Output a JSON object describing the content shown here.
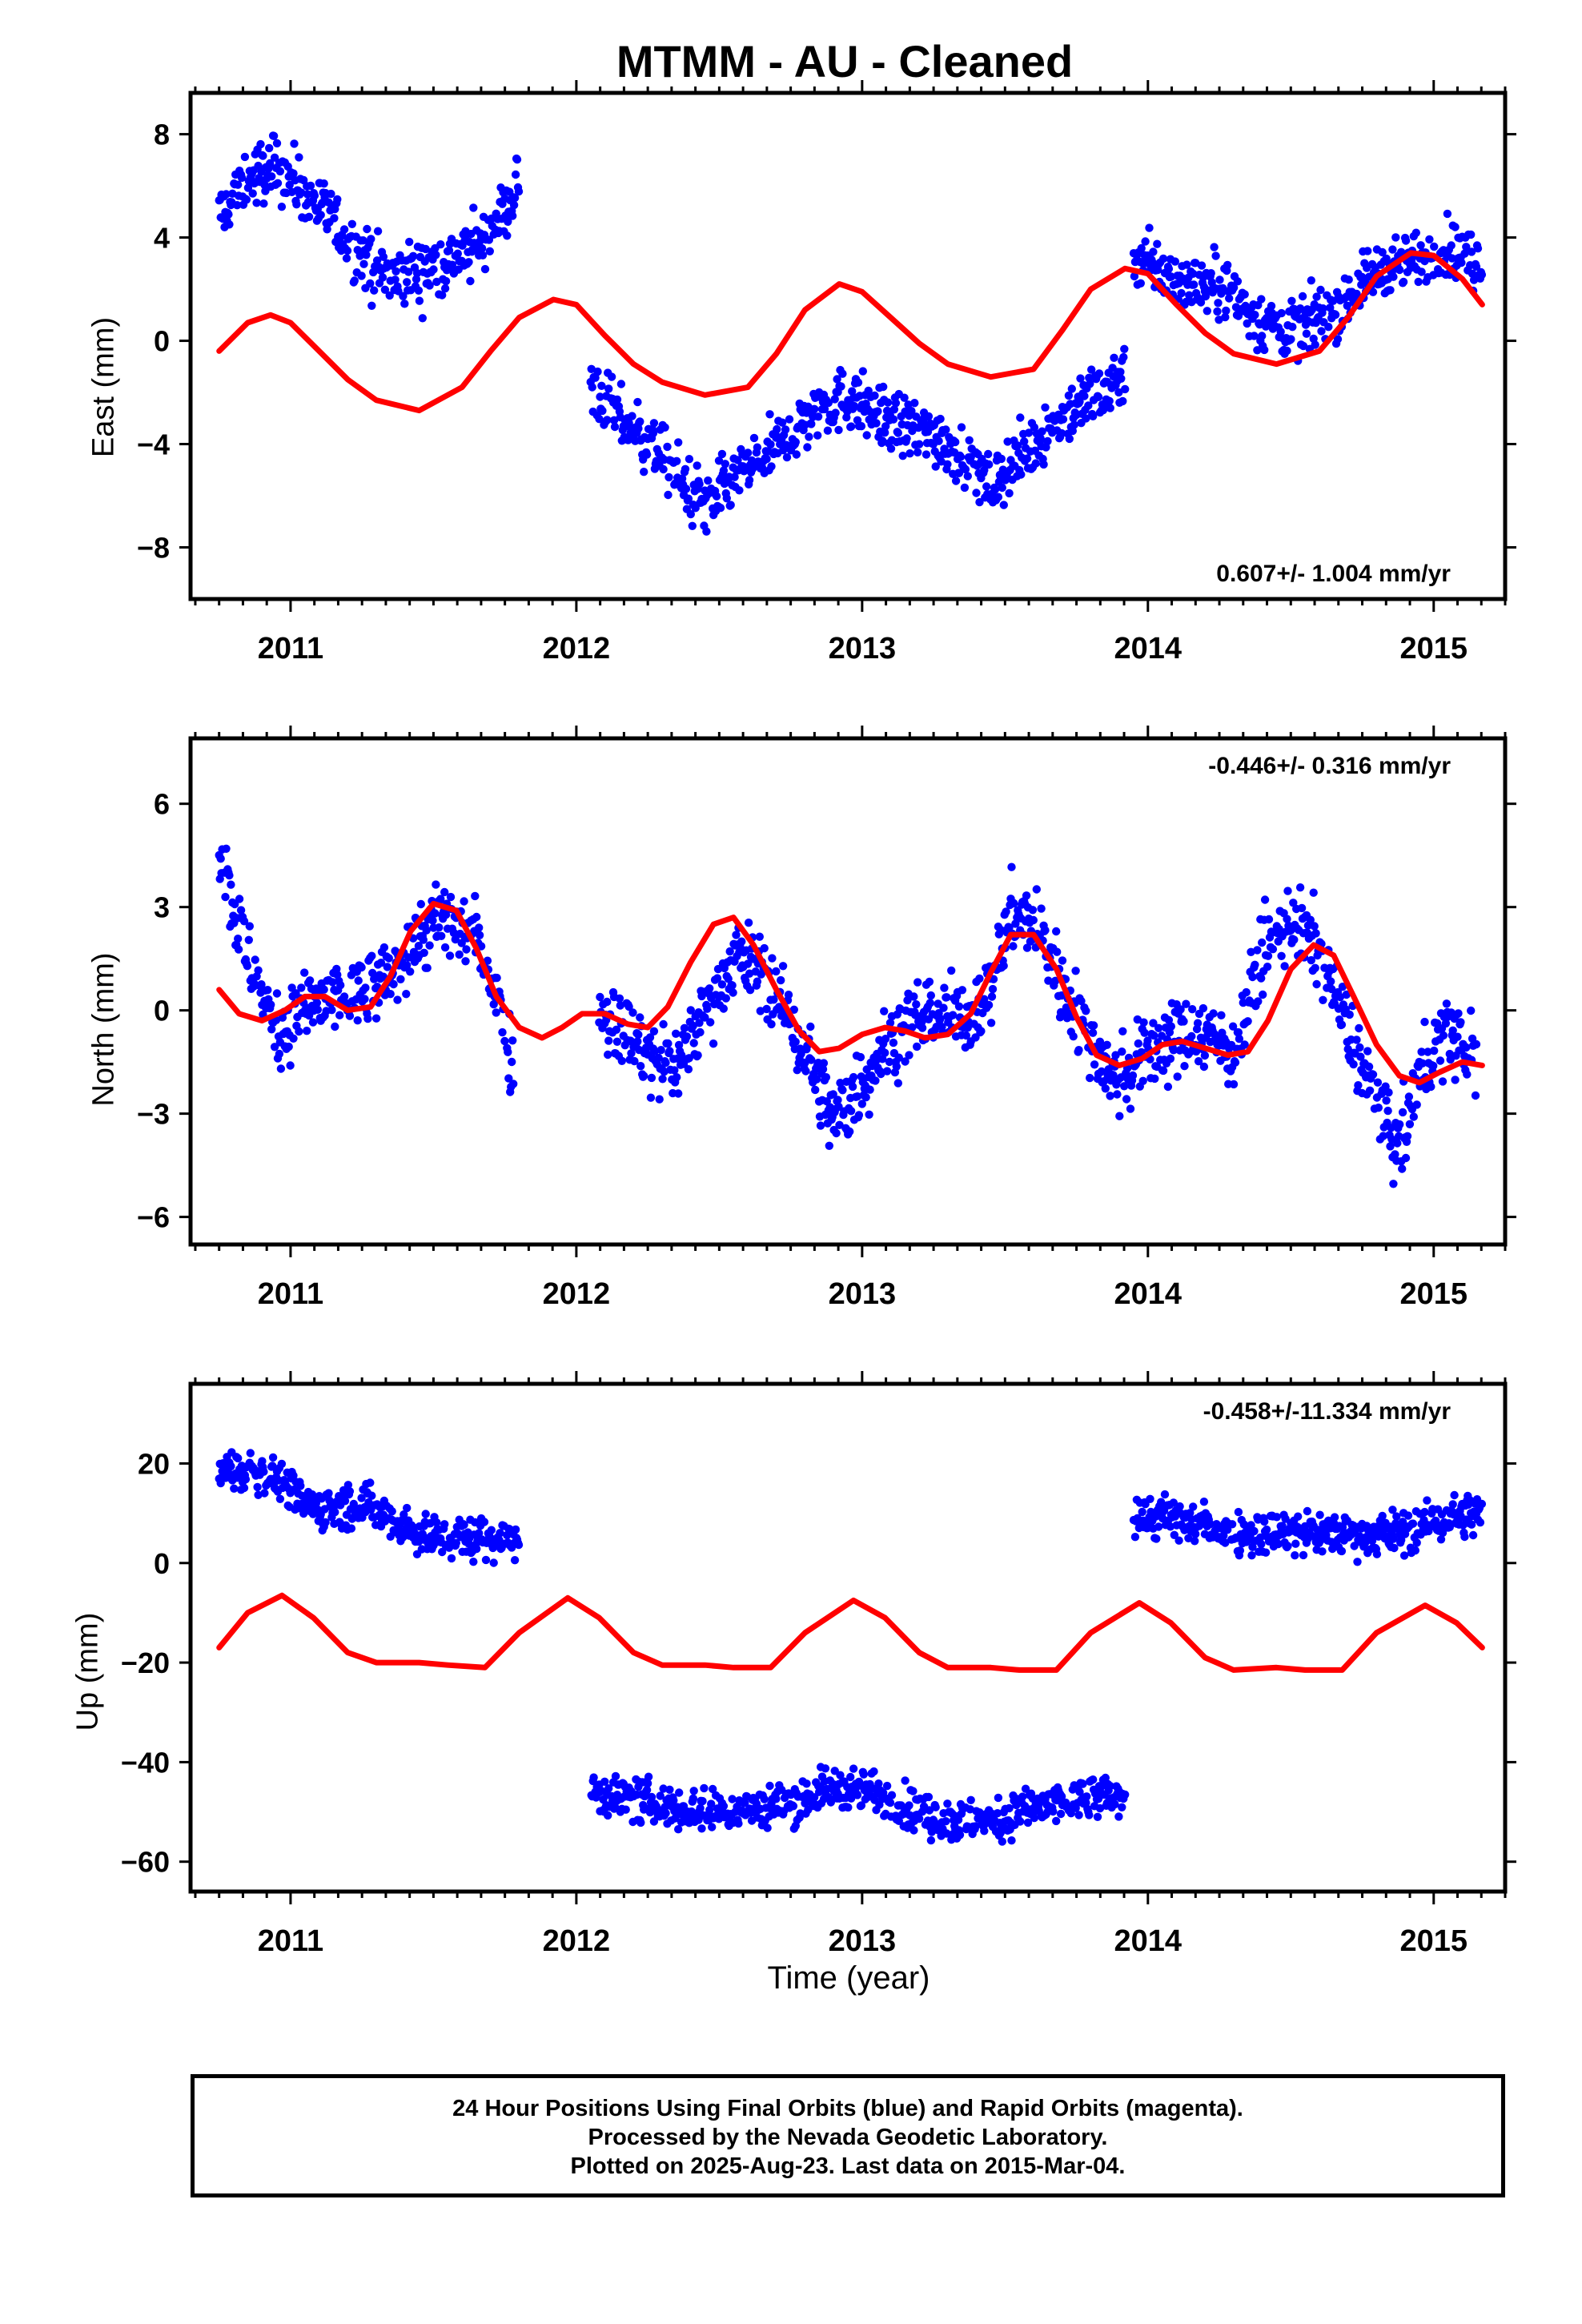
{
  "title": "MTMM  - AU - Cleaned",
  "xlabel": "Time (year)",
  "footer": {
    "line1": "24 Hour Positions Using Final Orbits (blue) and Rapid Orbits (magenta).",
    "line2": "Processed by the Nevada Geodetic Laboratory.",
    "line3": "Plotted on 2025-Aug-23. Last data on 2015-Mar-04."
  },
  "colors": {
    "final_orbits": "#0000ff",
    "model_fit": "#ff0000",
    "frame": "#000000"
  },
  "chart_data": [
    {
      "type": "scatter",
      "ylabel": "East (mm)",
      "rate_label": "0.607+/- 1.004 mm/yr",
      "rate_label_position": "bottom-right",
      "xlim": [
        2010.65,
        2015.25
      ],
      "ylim": [
        -10,
        9.6
      ],
      "yticks": [
        -8,
        -4,
        0,
        4,
        8
      ],
      "xticks": [
        2011,
        2012,
        2013,
        2014,
        2015
      ],
      "grid": false,
      "series": [
        {
          "kind": "points",
          "segments": [
            {
              "x": [
                2010.75,
                2010.85,
                2010.95,
                2011.05,
                2011.15,
                2011.25,
                2011.35,
                2011.45,
                2011.55,
                2011.65,
                2011.75,
                2011.8
              ],
              "y": [
                4.8,
                6.2,
                6.8,
                5.8,
                4.6,
                3.2,
                2.4,
                2.6,
                3.1,
                3.6,
                5.0,
                6.3
              ],
              "spread": 1.1
            },
            {
              "x": [
                2012.05,
                2012.15,
                2012.25,
                2012.35,
                2012.45,
                2012.55,
                2012.65,
                2012.75,
                2012.85,
                2012.95,
                2013.05,
                2013.15,
                2013.25,
                2013.35,
                2013.45,
                2013.55,
                2013.65,
                2013.75,
                2013.85,
                2013.92
              ],
              "y": [
                -1.8,
                -3.0,
                -3.8,
                -5.2,
                -6.4,
                -5.4,
                -4.6,
                -3.6,
                -2.6,
                -2.2,
                -2.8,
                -3.4,
                -3.6,
                -4.4,
                -5.6,
                -4.6,
                -3.4,
                -2.6,
                -1.8,
                -1.2
              ],
              "spread": 1.1
            },
            {
              "x": [
                2013.95,
                2014.05,
                2014.15,
                2014.25,
                2014.35,
                2014.45,
                2014.55,
                2014.65,
                2014.75,
                2014.85,
                2014.95,
                2015.05,
                2015.17
              ],
              "y": [
                3.4,
                2.6,
                2.2,
                2.2,
                1.2,
                0.4,
                0.6,
                1.2,
                2.2,
                3.0,
                3.2,
                3.6,
                3.0
              ],
              "spread": 1.0
            }
          ]
        },
        {
          "kind": "line",
          "x": [
            2010.75,
            2010.85,
            2010.93,
            2011.0,
            2011.1,
            2011.2,
            2011.3,
            2011.45,
            2011.6,
            2011.7,
            2011.8,
            2011.92,
            2012.0,
            2012.1,
            2012.2,
            2012.3,
            2012.45,
            2012.6,
            2012.7,
            2012.8,
            2012.92,
            2013.0,
            2013.1,
            2013.2,
            2013.3,
            2013.45,
            2013.6,
            2013.7,
            2013.8,
            2013.92,
            2014.0,
            2014.1,
            2014.2,
            2014.3,
            2014.45,
            2014.6,
            2014.7,
            2014.8,
            2014.92,
            2015.0,
            2015.1,
            2015.17
          ],
          "y": [
            -0.4,
            0.7,
            1.0,
            0.7,
            -0.4,
            -1.5,
            -2.3,
            -2.7,
            -1.8,
            -0.4,
            0.9,
            1.6,
            1.4,
            0.2,
            -0.9,
            -1.6,
            -2.1,
            -1.8,
            -0.5,
            1.2,
            2.2,
            1.9,
            0.9,
            -0.1,
            -0.9,
            -1.4,
            -1.1,
            0.4,
            2.0,
            2.8,
            2.6,
            1.4,
            0.3,
            -0.5,
            -0.9,
            -0.4,
            0.9,
            2.5,
            3.4,
            3.3,
            2.4,
            1.4
          ]
        }
      ]
    },
    {
      "type": "scatter",
      "ylabel": "North (mm)",
      "rate_label": "-0.446+/- 0.316 mm/yr",
      "rate_label_position": "top-right",
      "xlim": [
        2010.65,
        2015.25
      ],
      "ylim": [
        -6.8,
        7.9
      ],
      "yticks": [
        -6,
        -3,
        0,
        3,
        6
      ],
      "xticks": [
        2011,
        2012,
        2013,
        2014,
        2015
      ],
      "grid": false,
      "series": [
        {
          "kind": "points",
          "segments": [
            {
              "x": [
                2010.75,
                2010.8,
                2010.85,
                2010.9,
                2010.95,
                2011.05,
                2011.15,
                2011.25,
                2011.35,
                2011.45,
                2011.55,
                2011.65,
                2011.72,
                2011.78
              ],
              "y": [
                4.8,
                3.0,
                1.5,
                0.4,
                -0.6,
                0.0,
                0.3,
                0.4,
                1.0,
                2.2,
                2.6,
                2.1,
                0.6,
                -1.6
              ],
              "spread": 1.0
            },
            {
              "x": [
                2012.08,
                2012.15,
                2012.25,
                2012.35,
                2012.45,
                2012.55,
                2012.65,
                2012.75,
                2012.82,
                2012.9,
                2012.97,
                2013.05,
                2013.15,
                2013.25,
                2013.35,
                2013.45,
                2013.52,
                2013.6,
                2013.7,
                2013.8,
                2013.9,
                2014.0,
                2014.1,
                2014.2,
                2014.3,
                2014.4,
                2014.5,
                2014.6,
                2014.7,
                2014.8,
                2014.88,
                2014.95,
                2015.05,
                2015.15
              ],
              "y": [
                0.0,
                -0.4,
                -1.4,
                -1.6,
                0.0,
                1.6,
                1.2,
                -0.4,
                -1.6,
                -3.2,
                -2.6,
                -1.4,
                -0.4,
                0.0,
                -0.3,
                0.6,
                2.8,
                2.6,
                0.8,
                -1.0,
                -2.0,
                -1.2,
                -0.8,
                -0.6,
                -1.2,
                1.6,
                2.6,
                1.8,
                -0.6,
                -2.6,
                -4.2,
                -1.8,
                -0.6,
                -1.4
              ],
              "spread": 1.0
            }
          ]
        },
        {
          "kind": "line",
          "x": [
            2010.75,
            2010.82,
            2010.9,
            2010.98,
            2011.05,
            2011.12,
            2011.2,
            2011.28,
            2011.35,
            2011.42,
            2011.5,
            2011.58,
            2011.65,
            2011.72,
            2011.8,
            2011.88,
            2011.95,
            2012.02,
            2012.1,
            2012.18,
            2012.25,
            2012.32,
            2012.4,
            2012.48,
            2012.55,
            2012.62,
            2012.7,
            2012.78,
            2012.85,
            2012.92,
            2013.0,
            2013.08,
            2013.15,
            2013.22,
            2013.3,
            2013.38,
            2013.45,
            2013.52,
            2013.6,
            2013.68,
            2013.75,
            2013.82,
            2013.9,
            2013.98,
            2014.05,
            2014.12,
            2014.2,
            2014.28,
            2014.35,
            2014.42,
            2014.5,
            2014.58,
            2014.65,
            2014.72,
            2014.8,
            2014.88,
            2014.95,
            2015.02,
            2015.1,
            2015.17
          ],
          "y": [
            0.6,
            -0.1,
            -0.3,
            0.0,
            0.4,
            0.4,
            0.0,
            0.1,
            1.0,
            2.3,
            3.1,
            2.9,
            1.8,
            0.4,
            -0.5,
            -0.8,
            -0.5,
            -0.1,
            -0.1,
            -0.4,
            -0.5,
            0.1,
            1.4,
            2.5,
            2.7,
            1.9,
            0.6,
            -0.6,
            -1.2,
            -1.1,
            -0.7,
            -0.5,
            -0.6,
            -0.8,
            -0.7,
            -0.1,
            1.1,
            2.2,
            2.2,
            1.2,
            -0.2,
            -1.3,
            -1.6,
            -1.4,
            -1.0,
            -0.9,
            -1.1,
            -1.3,
            -1.2,
            -0.3,
            1.2,
            1.9,
            1.6,
            0.4,
            -1.0,
            -1.9,
            -2.1,
            -1.8,
            -1.5,
            -1.6
          ]
        }
      ]
    },
    {
      "type": "scatter",
      "ylabel": "Up (mm)",
      "rate_label": "-0.458+/-11.334 mm/yr",
      "rate_label_position": "top-right",
      "xlim": [
        2010.65,
        2015.25
      ],
      "ylim": [
        -66,
        36
      ],
      "yticks": [
        -60,
        -40,
        -20,
        0,
        20
      ],
      "xticks": [
        2011,
        2012,
        2013,
        2014,
        2015
      ],
      "grid": false,
      "series": [
        {
          "kind": "points",
          "segments": [
            {
              "x": [
                2010.75,
                2010.85,
                2010.95,
                2011.05,
                2011.15,
                2011.25,
                2011.35,
                2011.45,
                2011.55,
                2011.65,
                2011.75,
                2011.8
              ],
              "y": [
                18,
                19,
                17,
                12,
                11,
                12,
                9,
                6,
                5,
                5,
                5,
                5
              ],
              "spread": 4
            },
            {
              "x": [
                2012.05,
                2012.15,
                2012.25,
                2012.35,
                2012.45,
                2012.55,
                2012.65,
                2012.75,
                2012.85,
                2012.95,
                2013.05,
                2013.15,
                2013.25,
                2013.35,
                2013.45,
                2013.55,
                2013.65,
                2013.75,
                2013.85,
                2013.92
              ],
              "y": [
                -46,
                -47,
                -48,
                -49,
                -50,
                -50,
                -49,
                -48,
                -46,
                -45,
                -46,
                -49,
                -51,
                -52,
                -52,
                -50,
                -49,
                -48,
                -47,
                -47
              ],
              "spread": 4
            },
            {
              "x": [
                2013.95,
                2014.05,
                2014.15,
                2014.25,
                2014.35,
                2014.45,
                2014.55,
                2014.65,
                2014.75,
                2014.85,
                2014.95,
                2015.05,
                2015.17
              ],
              "y": [
                10,
                9,
                8,
                7,
                6,
                6,
                6,
                6,
                6,
                6,
                7,
                9,
                10
              ],
              "spread": 4
            }
          ]
        },
        {
          "kind": "line",
          "x": [
            2010.75,
            2010.85,
            2010.97,
            2011.08,
            2011.2,
            2011.3,
            2011.45,
            2011.55,
            2011.68,
            2011.8,
            2011.97,
            2012.08,
            2012.2,
            2012.3,
            2012.45,
            2012.55,
            2012.68,
            2012.8,
            2012.97,
            2013.08,
            2013.2,
            2013.3,
            2013.45,
            2013.55,
            2013.68,
            2013.8,
            2013.97,
            2014.08,
            2014.2,
            2014.3,
            2014.45,
            2014.55,
            2014.68,
            2014.8,
            2014.97,
            2015.08,
            2015.17
          ],
          "y": [
            -17,
            -10,
            -6.5,
            -11,
            -18,
            -20,
            -20,
            -20.5,
            -21,
            -14,
            -7,
            -11,
            -18,
            -20.5,
            -20.5,
            -21,
            -21,
            -14,
            -7.5,
            -11,
            -18,
            -21,
            -21,
            -21.5,
            -21.5,
            -14,
            -8,
            -12,
            -19,
            -21.5,
            -21,
            -21.5,
            -21.5,
            -14,
            -8.5,
            -12,
            -17
          ]
        }
      ]
    }
  ]
}
